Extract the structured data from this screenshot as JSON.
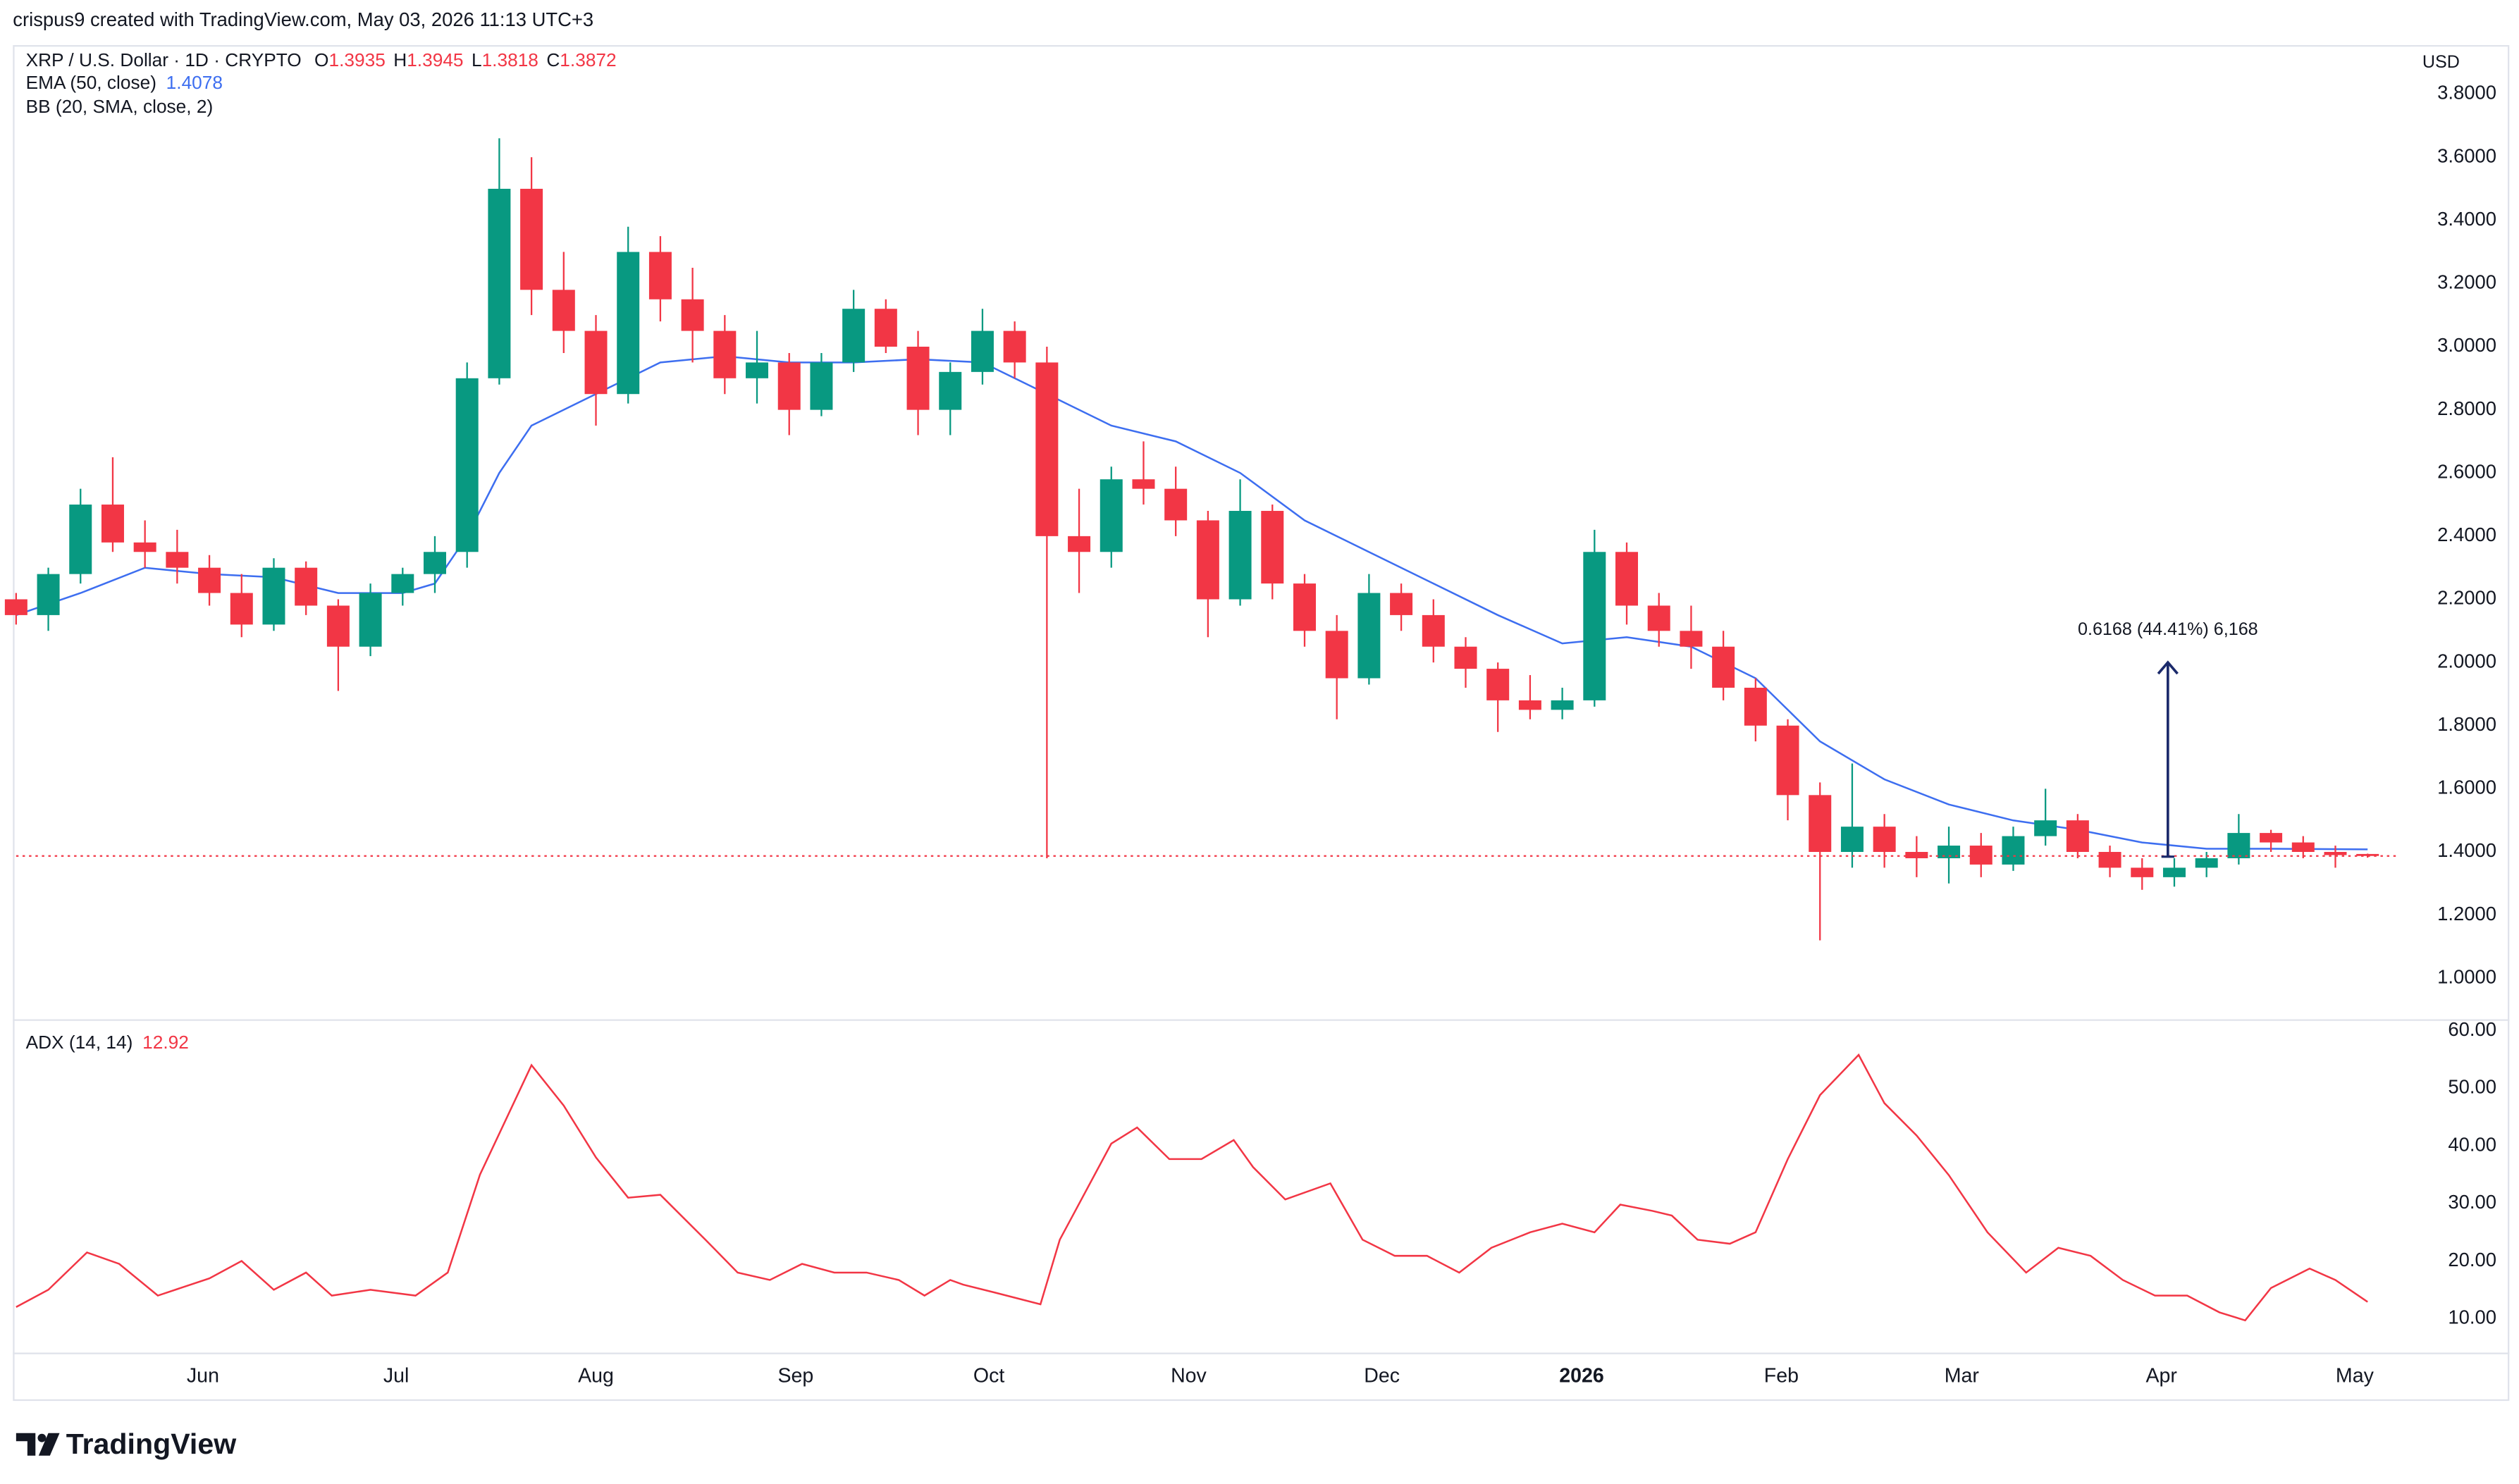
{
  "header": "crispus9 created with TradingView.com, May 03, 2026 11:13 UTC+3",
  "footer": "TradingView",
  "chart_data": [
    {
      "type": "candlestick",
      "title": "XRP / U.S. Dollar · 1D · CRYPTO",
      "ohlc_legend": [
        {
          "label": "O",
          "value": 1.3935
        },
        {
          "label": "H",
          "value": 1.3945
        },
        {
          "label": "L",
          "value": 1.3818
        },
        {
          "label": "C",
          "value": 1.3872
        }
      ],
      "indicators": [
        {
          "name": "EMA (50, close)",
          "value": 1.4078,
          "color": "#3d6ef0",
          "x": [
            0,
            10,
            20,
            30,
            40,
            50,
            60,
            65,
            70,
            75,
            80,
            90,
            100,
            110,
            120,
            130,
            140,
            150,
            160,
            170,
            180,
            190,
            200,
            210,
            220,
            230,
            240,
            250,
            260,
            270,
            280,
            290,
            300,
            310,
            320,
            330,
            340,
            350,
            365
          ],
          "values": [
            2.15,
            2.22,
            2.3,
            2.28,
            2.27,
            2.22,
            2.22,
            2.25,
            2.4,
            2.6,
            2.75,
            2.85,
            2.95,
            2.97,
            2.95,
            2.95,
            2.96,
            2.95,
            2.85,
            2.75,
            2.7,
            2.6,
            2.45,
            2.35,
            2.25,
            2.15,
            2.06,
            2.08,
            2.05,
            1.95,
            1.75,
            1.63,
            1.55,
            1.5,
            1.47,
            1.43,
            1.41,
            1.41,
            1.4078
          ]
        },
        {
          "name": "BB (20, SMA, close, 2)"
        }
      ],
      "unit": "USD",
      "up_color": "#089981",
      "down_color": "#f23645",
      "x": [
        0,
        5,
        10,
        15,
        20,
        25,
        30,
        35,
        40,
        45,
        50,
        55,
        60,
        65,
        70,
        75,
        80,
        85,
        90,
        95,
        100,
        105,
        110,
        115,
        120,
        125,
        130,
        135,
        140,
        145,
        150,
        155,
        160,
        165,
        170,
        175,
        180,
        185,
        190,
        195,
        200,
        205,
        210,
        215,
        220,
        225,
        230,
        235,
        240,
        245,
        250,
        255,
        260,
        265,
        270,
        275,
        280,
        285,
        290,
        295,
        300,
        305,
        310,
        315,
        320,
        325,
        330,
        335,
        340,
        345,
        350,
        355,
        360,
        365
      ],
      "open": [
        2.2,
        2.15,
        2.28,
        2.5,
        2.38,
        2.35,
        2.3,
        2.22,
        2.12,
        2.3,
        2.18,
        2.05,
        2.22,
        2.28,
        2.35,
        2.9,
        3.5,
        3.18,
        3.05,
        2.85,
        3.3,
        3.15,
        3.05,
        2.9,
        2.95,
        2.8,
        2.95,
        3.12,
        3.0,
        2.8,
        2.92,
        3.05,
        2.95,
        2.4,
        2.35,
        2.58,
        2.55,
        2.45,
        2.2,
        2.48,
        2.25,
        2.1,
        1.95,
        2.22,
        2.15,
        2.05,
        1.98,
        1.88,
        1.85,
        1.88,
        2.35,
        2.18,
        2.1,
        2.05,
        1.92,
        1.8,
        1.58,
        1.4,
        1.48,
        1.4,
        1.38,
        1.42,
        1.36,
        1.45,
        1.5,
        1.4,
        1.35,
        1.32,
        1.35,
        1.38,
        1.46,
        1.43,
        1.4,
        1.3935
      ],
      "high": [
        2.22,
        2.3,
        2.55,
        2.65,
        2.45,
        2.42,
        2.34,
        2.28,
        2.33,
        2.32,
        2.2,
        2.25,
        2.3,
        2.4,
        2.95,
        3.66,
        3.6,
        3.3,
        3.1,
        3.38,
        3.35,
        3.25,
        3.1,
        3.05,
        2.98,
        2.98,
        3.18,
        3.15,
        3.05,
        2.95,
        3.12,
        3.08,
        3.0,
        2.55,
        2.62,
        2.7,
        2.62,
        2.48,
        2.58,
        2.5,
        2.28,
        2.15,
        2.28,
        2.25,
        2.2,
        2.08,
        2.0,
        1.96,
        1.92,
        2.42,
        2.38,
        2.22,
        2.18,
        2.1,
        1.95,
        1.82,
        1.62,
        1.68,
        1.52,
        1.45,
        1.48,
        1.46,
        1.48,
        1.6,
        1.52,
        1.42,
        1.38,
        1.38,
        1.4,
        1.52,
        1.47,
        1.45,
        1.42,
        1.3945
      ],
      "low": [
        2.12,
        2.1,
        2.25,
        2.35,
        2.3,
        2.25,
        2.18,
        2.08,
        2.1,
        2.15,
        1.91,
        2.02,
        2.18,
        2.22,
        2.3,
        2.88,
        3.1,
        2.98,
        2.75,
        2.82,
        3.08,
        2.95,
        2.85,
        2.82,
        2.72,
        2.78,
        2.92,
        2.98,
        2.72,
        2.72,
        2.88,
        2.9,
        1.38,
        2.22,
        2.3,
        2.5,
        2.4,
        2.08,
        2.18,
        2.2,
        2.05,
        1.82,
        1.93,
        2.1,
        2.0,
        1.92,
        1.78,
        1.82,
        1.82,
        1.86,
        2.12,
        2.05,
        1.98,
        1.88,
        1.75,
        1.5,
        1.12,
        1.35,
        1.35,
        1.32,
        1.3,
        1.32,
        1.34,
        1.42,
        1.38,
        1.32,
        1.28,
        1.29,
        1.32,
        1.36,
        1.4,
        1.38,
        1.35,
        1.3818
      ],
      "close": [
        2.15,
        2.28,
        2.5,
        2.38,
        2.35,
        2.3,
        2.22,
        2.12,
        2.3,
        2.18,
        2.05,
        2.22,
        2.28,
        2.35,
        2.9,
        3.5,
        3.18,
        3.05,
        2.85,
        3.3,
        3.15,
        3.05,
        2.9,
        2.95,
        2.8,
        2.95,
        3.12,
        3.0,
        2.8,
        2.92,
        3.05,
        2.95,
        2.4,
        2.35,
        2.58,
        2.55,
        2.45,
        2.2,
        2.48,
        2.25,
        2.1,
        1.95,
        2.22,
        2.15,
        2.05,
        1.98,
        1.88,
        1.85,
        1.88,
        2.35,
        2.18,
        2.1,
        2.05,
        1.92,
        1.8,
        1.58,
        1.4,
        1.48,
        1.4,
        1.38,
        1.42,
        1.36,
        1.45,
        1.5,
        1.4,
        1.35,
        1.32,
        1.35,
        1.38,
        1.46,
        1.43,
        1.4,
        1.39,
        1.3872
      ],
      "xlim": [
        0,
        370
      ],
      "xticks": [
        {
          "value": 29,
          "label": "Jun"
        },
        {
          "value": 59,
          "label": "Jul"
        },
        {
          "value": 90,
          "label": "Aug"
        },
        {
          "value": 121,
          "label": "Sep"
        },
        {
          "value": 151,
          "label": "Oct"
        },
        {
          "value": 182,
          "label": "Nov"
        },
        {
          "value": 212,
          "label": "Dec"
        },
        {
          "value": 243,
          "label": "2026",
          "bold": true
        },
        {
          "value": 274,
          "label": "Feb"
        },
        {
          "value": 302,
          "label": "Mar"
        },
        {
          "value": 333,
          "label": "Apr"
        },
        {
          "value": 363,
          "label": "May"
        }
      ],
      "ylim": [
        0.87,
        3.95
      ],
      "yticks": [
        {
          "value": 1.0,
          "label": "1.0000"
        },
        {
          "value": 1.2,
          "label": "1.2000"
        },
        {
          "value": 1.4,
          "label": "1.4000"
        },
        {
          "value": 1.6,
          "label": "1.6000"
        },
        {
          "value": 1.8,
          "label": "1.8000"
        },
        {
          "value": 2.0,
          "label": "2.0000"
        },
        {
          "value": 2.2,
          "label": "2.2000"
        },
        {
          "value": 2.4,
          "label": "2.4000"
        },
        {
          "value": 2.6,
          "label": "2.6000"
        },
        {
          "value": 2.8,
          "label": "2.8000"
        },
        {
          "value": 3.0,
          "label": "3.0000"
        },
        {
          "value": 3.2,
          "label": "3.2000"
        },
        {
          "value": 3.4,
          "label": "3.4000"
        },
        {
          "value": 3.6,
          "label": "3.6000"
        },
        {
          "value": 3.8,
          "label": "3.8000"
        }
      ],
      "grid": false,
      "annotation": {
        "text": "0.6168 (44.41%) 6,168",
        "x": 334,
        "from": 1.385,
        "to": 2.0,
        "color": "#1b2a6b"
      }
    },
    {
      "type": "line",
      "title": "ADX (14, 14)",
      "value": 12.92,
      "color": "#f23645",
      "x": [
        0,
        5,
        11,
        16,
        22,
        30,
        35,
        40,
        45,
        49,
        55,
        62,
        67,
        72,
        80,
        85,
        90,
        95,
        100,
        107,
        112,
        117,
        122,
        127,
        132,
        137,
        141,
        145,
        147,
        152,
        159,
        162,
        170,
        174,
        179,
        184,
        189,
        192,
        197,
        204,
        209,
        214,
        219,
        224,
        229,
        235,
        240,
        245,
        249,
        254,
        257,
        261,
        266,
        270,
        275,
        280,
        286,
        290,
        295,
        300,
        306,
        312,
        317,
        322,
        327,
        332,
        337,
        342,
        346,
        350,
        356,
        360,
        365
      ],
      "values": [
        12,
        15,
        21.5,
        19.5,
        14,
        17,
        20,
        15,
        18,
        14,
        15,
        14,
        18,
        35,
        54,
        47,
        38,
        31,
        31.5,
        23.7,
        18,
        16.7,
        19.5,
        18,
        18,
        16.7,
        14,
        16.7,
        15.9,
        14.5,
        12.5,
        23.7,
        40.4,
        43.2,
        37.7,
        37.7,
        41,
        36.3,
        30.7,
        33.5,
        23.7,
        20.9,
        20.9,
        18,
        22.3,
        25,
        26.5,
        25,
        29.8,
        28.7,
        27.9,
        23.7,
        23,
        25,
        37.7,
        48.8,
        55.8,
        47.4,
        41.8,
        34.9,
        25,
        18,
        22.3,
        20.9,
        16.7,
        14,
        14,
        11.1,
        9.7,
        15.3,
        18.7,
        16.7,
        12.92
      ],
      "xlim": [
        0,
        370
      ],
      "ylim": [
        4.1,
        61.7
      ],
      "yticks": [
        {
          "value": 10,
          "label": "10.00"
        },
        {
          "value": 20,
          "label": "20.00"
        },
        {
          "value": 30,
          "label": "30.00"
        },
        {
          "value": 40,
          "label": "40.00"
        },
        {
          "value": 50,
          "label": "50.00"
        },
        {
          "value": 60,
          "label": "60.00"
        }
      ],
      "grid": false
    }
  ]
}
